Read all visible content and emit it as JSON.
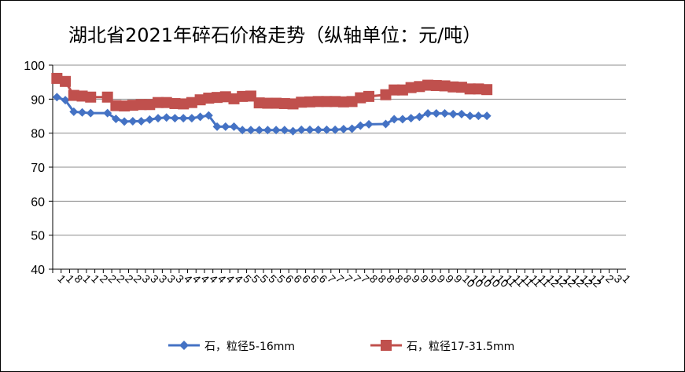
{
  "chart_data": {
    "type": "line",
    "title": "湖北省2021年碎石价格走势（纵轴单位：元/吨）",
    "xlabel": "",
    "ylabel": "",
    "ylim": [
      40,
      100
    ],
    "yticks": [
      "40",
      "50",
      "60",
      "70",
      "80",
      "90",
      "100"
    ],
    "grid": true,
    "legend": "bottom",
    "x": [
      "1",
      "1",
      "8",
      "1",
      "1",
      "2",
      "2",
      "2",
      "2",
      "2",
      "3",
      "3",
      "3",
      "3",
      "3",
      "4",
      "4",
      "4",
      "4",
      "4",
      "4",
      "4",
      "5",
      "5",
      "5",
      "5",
      "5",
      "6",
      "6",
      "6",
      "6",
      "6",
      "7",
      "7",
      "7",
      "7",
      "7",
      "8",
      "8",
      "8",
      "8",
      "8",
      "9",
      "9",
      "9",
      "9",
      "9",
      "9",
      "10",
      "10",
      "10",
      "10",
      "10",
      "11",
      "11",
      "11",
      "11",
      "11",
      "12",
      "12",
      "12",
      "12",
      "12",
      "12",
      "1",
      "2",
      "3",
      "1"
    ],
    "series": [
      {
        "name": "石，粒径5-16mm",
        "color": "#4472C4",
        "marker": "diamond",
        "points": [
          [
            0,
            90.6
          ],
          [
            1,
            89.7
          ],
          [
            2,
            86.3
          ],
          [
            3,
            86.1
          ],
          [
            4,
            85.9
          ],
          [
            6,
            85.9
          ],
          [
            7,
            84.2
          ],
          [
            8,
            83.4
          ],
          [
            9,
            83.5
          ],
          [
            10,
            83.5
          ],
          [
            11,
            84.0
          ],
          [
            12,
            84.4
          ],
          [
            13,
            84.6
          ],
          [
            14,
            84.4
          ],
          [
            15,
            84.4
          ],
          [
            16,
            84.4
          ],
          [
            17,
            84.8
          ],
          [
            18,
            85.2
          ],
          [
            19,
            81.9
          ],
          [
            20,
            81.9
          ],
          [
            21,
            81.9
          ],
          [
            22,
            80.9
          ],
          [
            23,
            80.9
          ],
          [
            24,
            80.9
          ],
          [
            25,
            80.9
          ],
          [
            26,
            80.9
          ],
          [
            27,
            80.9
          ],
          [
            28,
            80.6
          ],
          [
            29,
            81.0
          ],
          [
            30,
            81.0
          ],
          [
            31,
            81.0
          ],
          [
            32,
            81.0
          ],
          [
            33,
            81.0
          ],
          [
            34,
            81.2
          ],
          [
            35,
            81.3
          ],
          [
            36,
            82.2
          ],
          [
            37,
            82.6
          ],
          [
            39,
            82.7
          ],
          [
            40,
            84.1
          ],
          [
            41,
            84.1
          ],
          [
            42,
            84.4
          ],
          [
            43,
            84.8
          ],
          [
            44,
            85.8
          ],
          [
            45,
            85.8
          ],
          [
            46,
            85.8
          ],
          [
            47,
            85.6
          ],
          [
            48,
            85.6
          ],
          [
            49,
            85.1
          ],
          [
            50,
            85.1
          ],
          [
            51,
            85.1
          ]
        ]
      },
      {
        "name": "石，粒径17-31.5mm",
        "color": "#C0504D",
        "marker": "square",
        "points": [
          [
            0,
            96.1
          ],
          [
            1,
            95.2
          ],
          [
            2,
            91.1
          ],
          [
            3,
            90.9
          ],
          [
            4,
            90.6
          ],
          [
            6,
            90.6
          ],
          [
            7,
            88.1
          ],
          [
            8,
            88.0
          ],
          [
            9,
            88.2
          ],
          [
            10,
            88.4
          ],
          [
            11,
            88.4
          ],
          [
            12,
            89.0
          ],
          [
            13,
            89.0
          ],
          [
            14,
            88.7
          ],
          [
            15,
            88.6
          ],
          [
            16,
            89.0
          ],
          [
            17,
            89.8
          ],
          [
            18,
            90.3
          ],
          [
            19,
            90.5
          ],
          [
            20,
            90.7
          ],
          [
            21,
            90.1
          ],
          [
            22,
            90.8
          ],
          [
            23,
            90.9
          ],
          [
            24,
            88.9
          ],
          [
            25,
            88.8
          ],
          [
            26,
            88.8
          ],
          [
            27,
            88.7
          ],
          [
            28,
            88.6
          ],
          [
            29,
            89.1
          ],
          [
            30,
            89.2
          ],
          [
            31,
            89.3
          ],
          [
            32,
            89.3
          ],
          [
            33,
            89.3
          ],
          [
            34,
            89.2
          ],
          [
            35,
            89.3
          ],
          [
            36,
            90.4
          ],
          [
            37,
            90.8
          ],
          [
            39,
            91.3
          ],
          [
            40,
            92.7
          ],
          [
            41,
            92.7
          ],
          [
            42,
            93.4
          ],
          [
            43,
            93.7
          ],
          [
            44,
            94.1
          ],
          [
            45,
            94.0
          ],
          [
            46,
            93.9
          ],
          [
            47,
            93.6
          ],
          [
            48,
            93.5
          ],
          [
            49,
            93.0
          ],
          [
            50,
            93.0
          ],
          [
            51,
            92.8
          ]
        ]
      }
    ]
  }
}
